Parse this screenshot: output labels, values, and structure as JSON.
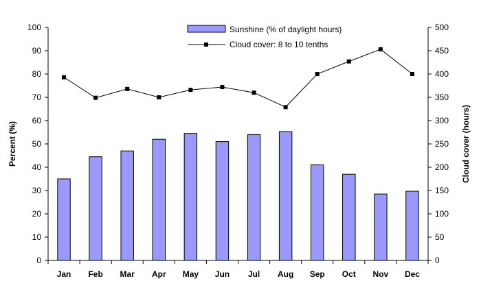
{
  "chart_data": {
    "type": "bar+line",
    "categories": [
      "Jan",
      "Feb",
      "Mar",
      "Apr",
      "May",
      "Jun",
      "Jul",
      "Aug",
      "Sep",
      "Oct",
      "Nov",
      "Dec"
    ],
    "series": [
      {
        "name": "Sunshine (% of daylight hours)",
        "type": "bar",
        "axis": "left",
        "values": [
          35,
          44.5,
          47,
          52,
          54.5,
          51,
          54,
          55.3,
          41,
          37,
          28.5,
          29.7
        ]
      },
      {
        "name": "Cloud cover: 8 to 10 tenths",
        "type": "line",
        "axis": "right",
        "values": [
          393,
          349,
          368,
          350,
          366,
          372,
          360,
          329,
          400,
          427,
          453,
          400
        ]
      }
    ],
    "ylabel": "Percent (%)",
    "y2label": "Cloud cover (hours)",
    "ylim": [
      0,
      100
    ],
    "y2lim": [
      0,
      500
    ],
    "yticks": [
      0,
      10,
      20,
      30,
      40,
      50,
      60,
      70,
      80,
      90,
      100
    ],
    "y2ticks": [
      0,
      50,
      100,
      150,
      200,
      250,
      300,
      350,
      400,
      450,
      500
    ],
    "grid": false,
    "legend_position": "top-center",
    "colors": {
      "bar_fill": "#9999ff",
      "bar_stroke": "#000000",
      "line": "#000000",
      "marker": "#000000"
    }
  }
}
